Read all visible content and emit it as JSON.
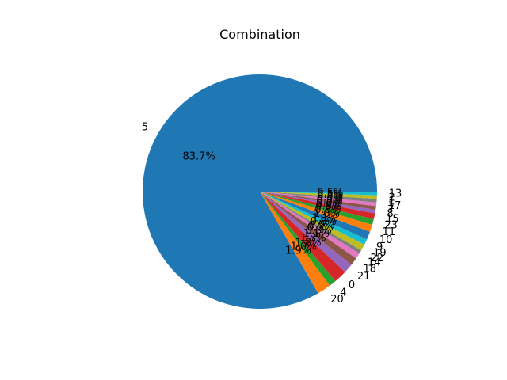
{
  "chart_data": {
    "type": "pie",
    "title": "Combination",
    "labels": [
      "5",
      "20",
      "4",
      "0",
      "21",
      "18",
      "14",
      "22",
      "19",
      "9",
      "10",
      "11",
      "23",
      "15",
      "8",
      "7",
      "17",
      "1",
      "2",
      "13"
    ],
    "values": [
      83.7,
      1.9,
      1.0,
      1.8,
      1.3,
      1.1,
      0.8,
      0.5,
      0.9,
      0.8,
      1.1,
      1.0,
      0.8,
      0.8,
      0.5,
      0.5,
      0.5,
      0.5,
      0.5,
      0.5
    ],
    "percent_labels": [
      "83.7%",
      "1.9%",
      "1.0%",
      "1.8%",
      "1.3%",
      "1.1%",
      "0.8%",
      "0.5%",
      "0.9%",
      "0.8%",
      "1.1%",
      "1.0%",
      "0.8%",
      "0.8%",
      "0.5%",
      "0.5%",
      "0.5%",
      "0.5%",
      "0.5%",
      "0.5%"
    ],
    "colors": [
      "#1f77b4",
      "#ff7f0e",
      "#2ca02c",
      "#d62728",
      "#9467bd",
      "#8c564b",
      "#e377c2",
      "#7f7f7f",
      "#bcbd22",
      "#17becf",
      "#1f77b4",
      "#ff7f0e",
      "#2ca02c",
      "#d62728",
      "#9467bd",
      "#8c564b",
      "#e377c2",
      "#7f7f7f",
      "#bcbd22",
      "#17becf"
    ],
    "start_angle_deg": 0,
    "direction": "counterclockwise"
  }
}
